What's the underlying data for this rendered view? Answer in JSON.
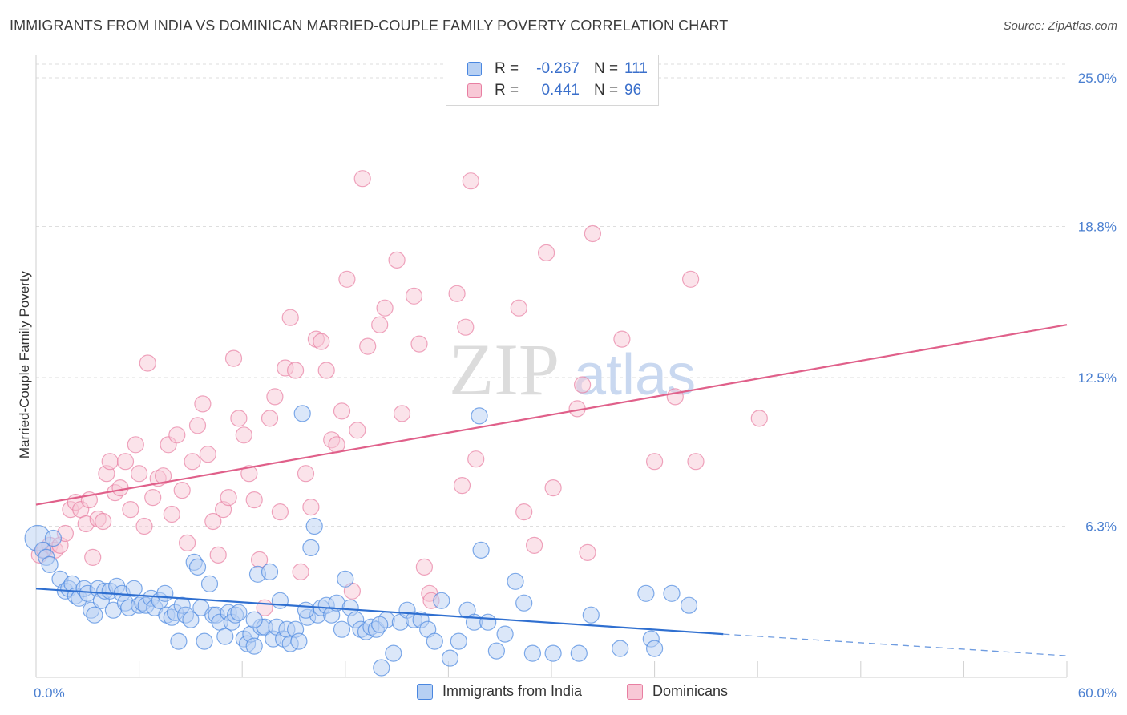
{
  "title": "IMMIGRANTS FROM INDIA VS DOMINICAN MARRIED-COUPLE FAMILY POVERTY CORRELATION CHART",
  "source": "Source: ZipAtlas.com",
  "watermark": {
    "zip": "ZIP",
    "atlas": "atlas"
  },
  "legend": {
    "rows": [
      {
        "r_label": "R =",
        "r_value": "-0.267",
        "n_label": "N =",
        "n_value": "111",
        "color": "#4a87e0",
        "fill": "#b7d0f3"
      },
      {
        "r_label": "R =",
        "r_value": "0.441",
        "n_label": "N =",
        "n_value": "96",
        "color": "#e87fa2",
        "fill": "#f8c8d6"
      }
    ]
  },
  "bottom_legend": {
    "india": "Immigrants from India",
    "dominicans": "Dominicans"
  },
  "chart_data": {
    "type": "scatter",
    "title": "IMMIGRANTS FROM INDIA VS DOMINICAN MARRIED-COUPLE FAMILY POVERTY CORRELATION CHART",
    "xlabel": "",
    "ylabel": "Married-Couple Family Poverty",
    "xlim": [
      0,
      60
    ],
    "ylim": [
      0,
      25
    ],
    "x_tick_labels": [
      "0.0%",
      "60.0%"
    ],
    "y_ticks": [
      6.3,
      12.5,
      18.8,
      25.0
    ],
    "y_tick_labels": [
      "6.3%",
      "12.5%",
      "18.8%",
      "25.0%"
    ],
    "grid": true,
    "series": [
      {
        "name": "Immigrants from India",
        "color": "#4a87e0",
        "fill": "#b7d0f3",
        "trend": {
          "x": [
            0,
            40
          ],
          "y": [
            3.7,
            1.8
          ],
          "dashed_to_x": 60,
          "dashed_y": 0.9
        },
        "points": [
          [
            0.1,
            5.8
          ],
          [
            0.4,
            5.3
          ],
          [
            0.6,
            5.0
          ],
          [
            0.8,
            4.7
          ],
          [
            1.0,
            5.8
          ],
          [
            1.4,
            4.1
          ],
          [
            1.7,
            3.6
          ],
          [
            1.9,
            3.7
          ],
          [
            2.1,
            3.9
          ],
          [
            2.3,
            3.4
          ],
          [
            2.5,
            3.3
          ],
          [
            2.8,
            3.7
          ],
          [
            3.0,
            3.5
          ],
          [
            3.2,
            2.8
          ],
          [
            3.4,
            2.6
          ],
          [
            3.6,
            3.7
          ],
          [
            3.8,
            3.2
          ],
          [
            4.0,
            3.6
          ],
          [
            4.3,
            3.6
          ],
          [
            4.5,
            2.8
          ],
          [
            4.7,
            3.8
          ],
          [
            5.0,
            3.5
          ],
          [
            5.2,
            3.1
          ],
          [
            5.4,
            2.9
          ],
          [
            5.7,
            3.7
          ],
          [
            6.0,
            3.0
          ],
          [
            6.2,
            3.1
          ],
          [
            6.4,
            3.0
          ],
          [
            6.7,
            3.3
          ],
          [
            6.9,
            2.9
          ],
          [
            7.2,
            3.2
          ],
          [
            7.5,
            3.5
          ],
          [
            7.6,
            2.6
          ],
          [
            7.9,
            2.5
          ],
          [
            8.1,
            2.7
          ],
          [
            8.3,
            1.5
          ],
          [
            8.5,
            3.0
          ],
          [
            8.7,
            2.6
          ],
          [
            9.0,
            2.4
          ],
          [
            9.2,
            4.8
          ],
          [
            9.4,
            4.6
          ],
          [
            9.6,
            2.9
          ],
          [
            9.8,
            1.5
          ],
          [
            10.1,
            3.9
          ],
          [
            10.3,
            2.6
          ],
          [
            10.5,
            2.6
          ],
          [
            10.7,
            2.3
          ],
          [
            11.0,
            1.7
          ],
          [
            11.2,
            2.7
          ],
          [
            11.4,
            2.3
          ],
          [
            11.6,
            2.6
          ],
          [
            11.8,
            2.7
          ],
          [
            12.1,
            1.6
          ],
          [
            12.3,
            1.4
          ],
          [
            12.5,
            1.8
          ],
          [
            12.7,
            1.3
          ],
          [
            12.9,
            4.3
          ],
          [
            13.1,
            2.1
          ],
          [
            13.3,
            2.1
          ],
          [
            13.6,
            4.4
          ],
          [
            13.8,
            1.6
          ],
          [
            14.0,
            2.1
          ],
          [
            14.2,
            3.2
          ],
          [
            14.4,
            1.6
          ],
          [
            14.6,
            2.0
          ],
          [
            14.8,
            1.4
          ],
          [
            15.1,
            2.0
          ],
          [
            15.3,
            1.5
          ],
          [
            15.5,
            11.0
          ],
          [
            15.8,
            2.5
          ],
          [
            16.0,
            5.4
          ],
          [
            16.2,
            6.3
          ],
          [
            16.4,
            2.6
          ],
          [
            16.6,
            2.9
          ],
          [
            16.9,
            3.0
          ],
          [
            17.2,
            2.6
          ],
          [
            17.5,
            3.1
          ],
          [
            17.8,
            2.0
          ],
          [
            18.0,
            4.1
          ],
          [
            18.3,
            2.9
          ],
          [
            18.6,
            2.4
          ],
          [
            18.9,
            2.0
          ],
          [
            19.2,
            1.9
          ],
          [
            19.5,
            2.1
          ],
          [
            19.8,
            2.0
          ],
          [
            20.1,
            0.4
          ],
          [
            20.4,
            2.4
          ],
          [
            20.8,
            1.0
          ],
          [
            21.2,
            2.3
          ],
          [
            21.6,
            2.8
          ],
          [
            22.0,
            2.4
          ],
          [
            22.4,
            2.4
          ],
          [
            22.8,
            2.0
          ],
          [
            23.2,
            1.5
          ],
          [
            23.6,
            3.2
          ],
          [
            24.1,
            0.8
          ],
          [
            24.6,
            1.5
          ],
          [
            25.1,
            2.8
          ],
          [
            25.5,
            2.3
          ],
          [
            25.9,
            5.3
          ],
          [
            26.3,
            2.3
          ],
          [
            26.8,
            1.1
          ],
          [
            27.3,
            1.8
          ],
          [
            27.9,
            4.0
          ],
          [
            28.4,
            3.1
          ],
          [
            28.9,
            1.0
          ],
          [
            30.1,
            1.0
          ],
          [
            31.6,
            1.0
          ],
          [
            32.3,
            2.6
          ],
          [
            34.0,
            1.2
          ],
          [
            35.5,
            3.5
          ],
          [
            35.8,
            1.6
          ],
          [
            36.0,
            1.2
          ],
          [
            37.0,
            3.5
          ],
          [
            38.0,
            3.0
          ],
          [
            25.8,
            10.9
          ],
          [
            12.7,
            2.4
          ],
          [
            15.7,
            2.8
          ],
          [
            20.0,
            2.2
          ]
        ]
      },
      {
        "name": "Dominicans",
        "color": "#e87fa2",
        "fill": "#f8c8d6",
        "trend": {
          "x": [
            0,
            60
          ],
          "y": [
            7.2,
            14.7
          ]
        },
        "points": [
          [
            0.2,
            5.1
          ],
          [
            0.5,
            5.3
          ],
          [
            0.8,
            5.5
          ],
          [
            1.1,
            5.3
          ],
          [
            1.4,
            5.5
          ],
          [
            1.7,
            6.0
          ],
          [
            2.0,
            7.0
          ],
          [
            2.3,
            7.3
          ],
          [
            2.6,
            7.0
          ],
          [
            2.9,
            6.4
          ],
          [
            3.1,
            7.4
          ],
          [
            3.3,
            5.0
          ],
          [
            3.6,
            6.6
          ],
          [
            3.9,
            6.5
          ],
          [
            4.1,
            8.5
          ],
          [
            4.3,
            9.0
          ],
          [
            4.6,
            7.7
          ],
          [
            4.9,
            7.9
          ],
          [
            5.2,
            9.0
          ],
          [
            5.5,
            7.0
          ],
          [
            5.8,
            9.7
          ],
          [
            6.0,
            8.5
          ],
          [
            6.3,
            6.3
          ],
          [
            6.5,
            13.1
          ],
          [
            6.8,
            7.5
          ],
          [
            7.1,
            8.3
          ],
          [
            7.4,
            8.4
          ],
          [
            7.7,
            9.7
          ],
          [
            7.9,
            6.8
          ],
          [
            8.2,
            10.1
          ],
          [
            8.5,
            7.8
          ],
          [
            8.8,
            5.6
          ],
          [
            9.1,
            9.0
          ],
          [
            9.4,
            10.5
          ],
          [
            9.7,
            11.4
          ],
          [
            10.0,
            9.3
          ],
          [
            10.3,
            6.5
          ],
          [
            10.6,
            5.1
          ],
          [
            10.9,
            7.0
          ],
          [
            11.2,
            7.5
          ],
          [
            11.5,
            13.3
          ],
          [
            11.8,
            10.8
          ],
          [
            12.1,
            10.1
          ],
          [
            12.4,
            8.5
          ],
          [
            12.7,
            7.4
          ],
          [
            13.0,
            4.9
          ],
          [
            13.3,
            2.9
          ],
          [
            13.6,
            10.8
          ],
          [
            13.9,
            11.7
          ],
          [
            14.2,
            6.9
          ],
          [
            14.5,
            12.9
          ],
          [
            14.8,
            15.0
          ],
          [
            15.1,
            12.8
          ],
          [
            15.4,
            4.4
          ],
          [
            15.7,
            8.5
          ],
          [
            16.0,
            7.1
          ],
          [
            16.3,
            14.1
          ],
          [
            16.6,
            14.0
          ],
          [
            16.9,
            12.8
          ],
          [
            17.2,
            9.9
          ],
          [
            17.5,
            9.7
          ],
          [
            17.8,
            11.1
          ],
          [
            18.1,
            16.6
          ],
          [
            18.4,
            3.6
          ],
          [
            18.7,
            10.3
          ],
          [
            19.0,
            20.8
          ],
          [
            19.3,
            13.8
          ],
          [
            20.0,
            14.7
          ],
          [
            20.3,
            15.4
          ],
          [
            21.0,
            17.4
          ],
          [
            21.3,
            11.0
          ],
          [
            22.0,
            15.9
          ],
          [
            22.3,
            13.9
          ],
          [
            22.6,
            4.6
          ],
          [
            22.9,
            3.5
          ],
          [
            23.0,
            3.2
          ],
          [
            24.5,
            16.0
          ],
          [
            24.8,
            8.0
          ],
          [
            25.0,
            14.6
          ],
          [
            25.3,
            20.7
          ],
          [
            25.6,
            9.1
          ],
          [
            28.1,
            15.4
          ],
          [
            28.4,
            6.9
          ],
          [
            29.0,
            5.5
          ],
          [
            29.7,
            17.7
          ],
          [
            30.1,
            7.9
          ],
          [
            31.5,
            11.2
          ],
          [
            31.8,
            12.2
          ],
          [
            32.1,
            5.2
          ],
          [
            32.4,
            18.5
          ],
          [
            34.1,
            14.1
          ],
          [
            36.0,
            9.0
          ],
          [
            37.2,
            11.7
          ],
          [
            38.1,
            16.6
          ],
          [
            38.4,
            9.0
          ],
          [
            42.1,
            10.8
          ]
        ]
      }
    ]
  }
}
